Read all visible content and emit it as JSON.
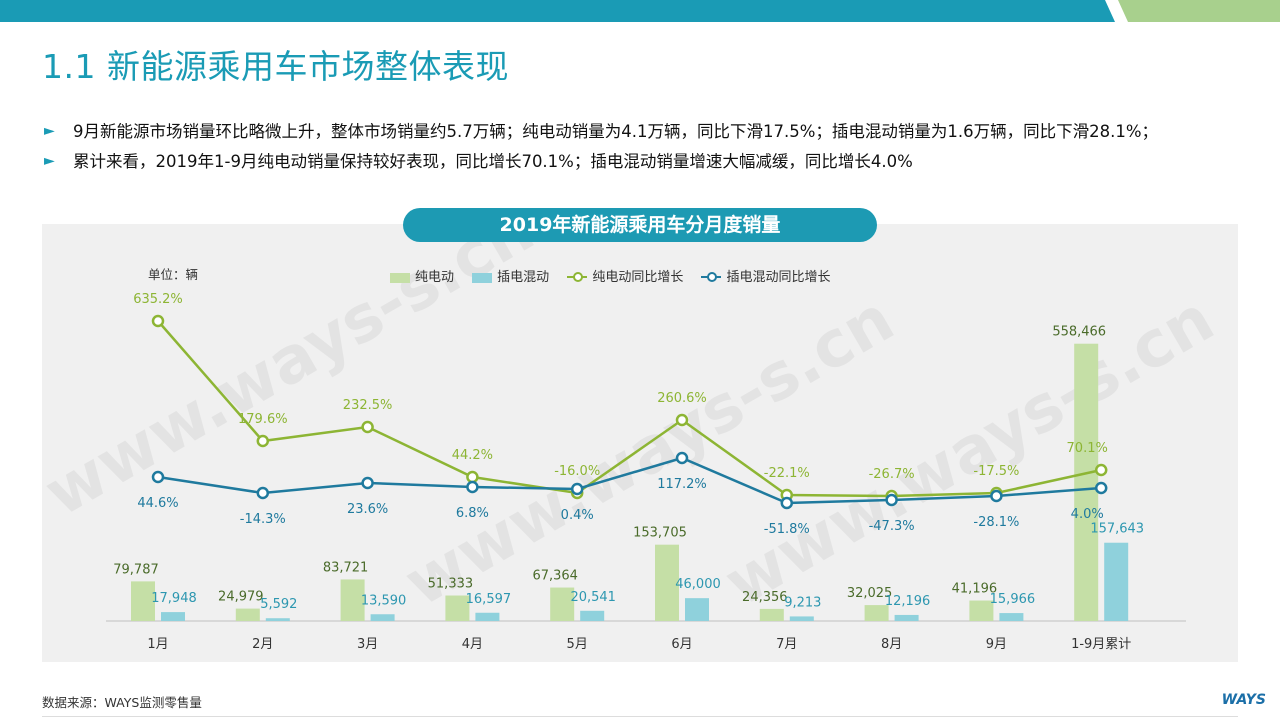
{
  "page": {
    "title": "1.1 新能源乘用车市场整体表现",
    "bullets": [
      "9月新能源市场销量环比略微上升，整体市场销量约5.7万辆；纯电动销量为4.1万辆，同比下滑17.5%；插电混动销量为1.6万辆，同比下滑28.1%；",
      "累计来看，2019年1-9月纯电动销量保持较好表现，同比增长70.1%；插电混动销量增速大幅减缓，同比增长4.0%"
    ],
    "bullet_marker": "►",
    "footer": "数据来源：WAYS监测零售量",
    "logo": "WAYS",
    "watermark": "www.ways-s.cn",
    "colors": {
      "accent": "#1a9bb5",
      "topbar_blue": "#1a9bb5",
      "topbar_green": "#a8d08d",
      "bev_bar": "#c5dfa6",
      "phev_bar": "#8fd1dc",
      "bev_line": "#8db534",
      "phev_line": "#1f7a9e"
    }
  },
  "chart_data": {
    "type": "bar",
    "title": "2019年新能源乘用车分月度销量",
    "unit_label": "单位：辆",
    "categories": [
      "1月",
      "2月",
      "3月",
      "4月",
      "5月",
      "6月",
      "7月",
      "8月",
      "9月",
      "1-9月累计"
    ],
    "series": [
      {
        "name": "纯电动",
        "type": "bar",
        "values": [
          79787,
          24979,
          83721,
          51333,
          67364,
          153705,
          24356,
          32025,
          41196,
          558466
        ],
        "labels": [
          "79,787",
          "24,979",
          "83,721",
          "51,333",
          "67,364",
          "153,705",
          "24,356",
          "32,025",
          "41,196",
          "558,466"
        ]
      },
      {
        "name": "插电混动",
        "type": "bar",
        "values": [
          17948,
          5592,
          13590,
          16597,
          20541,
          46000,
          9213,
          12196,
          15966,
          157643
        ],
        "labels": [
          "17,948",
          "5,592",
          "13,590",
          "16,597",
          "20,541",
          "46,000",
          "9,213",
          "12,196",
          "15,966",
          "157,643"
        ]
      },
      {
        "name": "纯电动同比增长",
        "type": "line",
        "values": [
          635.2,
          179.6,
          232.5,
          44.2,
          -16.0,
          260.6,
          -22.1,
          -26.7,
          -17.5,
          70.1
        ],
        "labels": [
          "635.2%",
          "179.6%",
          "232.5%",
          "44.2%",
          "-16.0%",
          "260.6%",
          "-22.1%",
          "-26.7%",
          "-17.5%",
          "70.1%"
        ]
      },
      {
        "name": "插电混动同比增长",
        "type": "line",
        "values": [
          44.6,
          -14.3,
          23.6,
          6.8,
          0.4,
          117.2,
          -51.8,
          -47.3,
          -28.1,
          4.0
        ],
        "labels": [
          "44.6%",
          "-14.3%",
          "23.6%",
          "6.8%",
          "0.4%",
          "117.2%",
          "-51.8%",
          "-47.3%",
          "-28.1%",
          "4.0%"
        ]
      }
    ],
    "ylim_bars": [
      0,
      600000
    ],
    "ylim_lines": [
      -300,
      700
    ],
    "grid": false,
    "legend_placement": "top-center"
  }
}
